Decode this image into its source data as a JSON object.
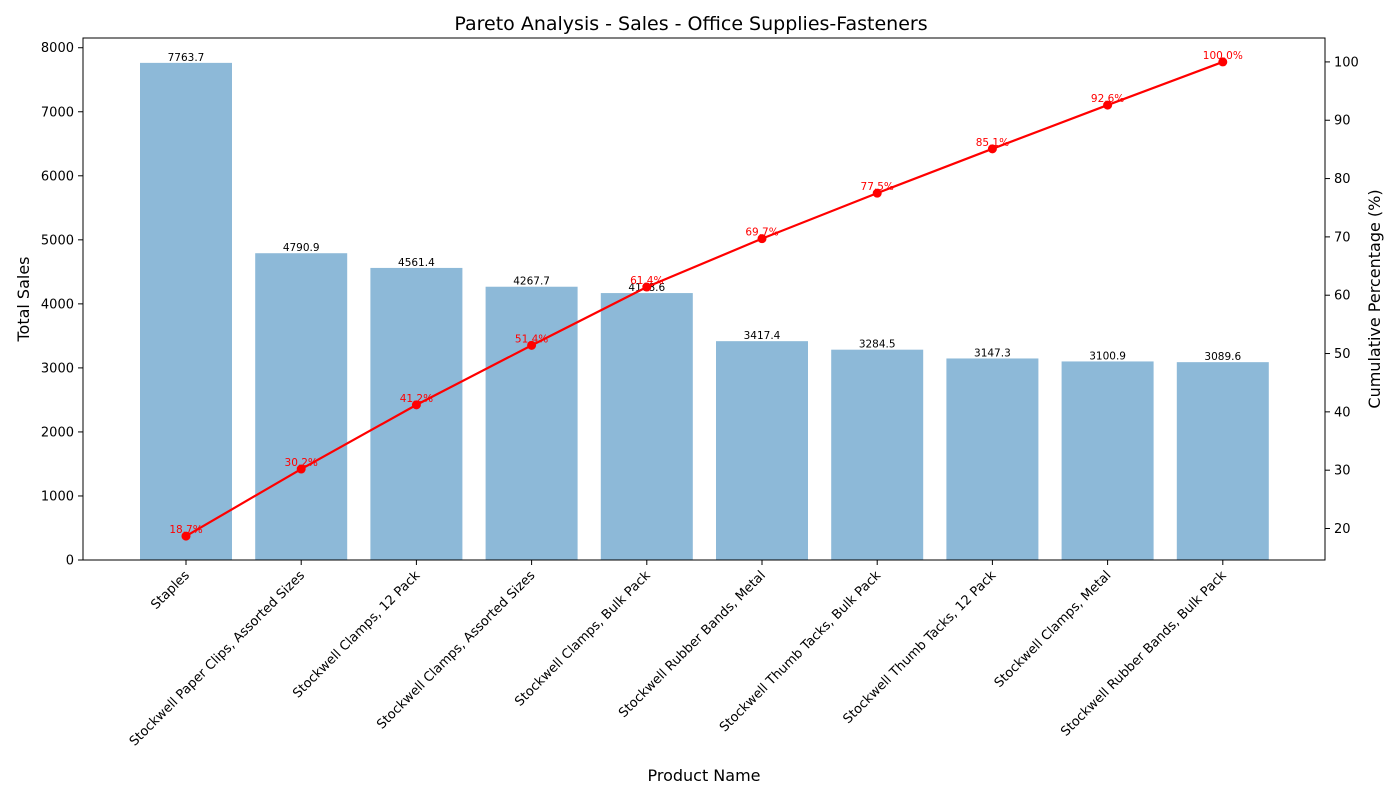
{
  "chart_data": {
    "type": "bar",
    "title": "Pareto Analysis - Sales - Office Supplies-Fasteners",
    "xlabel": "Product Name",
    "ylabel": "Total Sales",
    "y2label": "Cumulative Percentage (%)",
    "categories": [
      "Staples",
      "Stockwell Paper Clips, Assorted Sizes",
      "Stockwell Clamps, 12 Pack",
      "Stockwell Clamps, Assorted Sizes",
      "Stockwell Clamps, Bulk Pack",
      "Stockwell Rubber Bands, Metal",
      "Stockwell Thumb Tacks, Bulk Pack",
      "Stockwell Thumb Tacks, 12 Pack",
      "Stockwell Clamps, Metal",
      "Stockwell Rubber Bands, Bulk Pack"
    ],
    "values": [
      7763.7,
      4790.9,
      4561.4,
      4267.7,
      4168.6,
      3417.4,
      3284.5,
      3147.3,
      3100.9,
      3089.6
    ],
    "bar_labels": [
      "7763.7",
      "4790.9",
      "4561.4",
      "4267.7",
      "4168.6",
      "3417.4",
      "3284.5",
      "3147.3",
      "3100.9",
      "3089.6"
    ],
    "cumulative_pct": [
      18.7,
      30.2,
      41.2,
      51.4,
      61.4,
      69.7,
      77.5,
      85.1,
      92.6,
      100.0
    ],
    "pct_labels": [
      "18.7%",
      "30.2%",
      "41.2%",
      "51.4%",
      "61.4%",
      "69.7%",
      "77.5%",
      "85.1%",
      "92.6%",
      "100.0%"
    ],
    "ylim": [
      0,
      8152
    ],
    "y2lim": [
      14.6,
      104.1
    ],
    "yticks": [
      0,
      1000,
      2000,
      3000,
      4000,
      5000,
      6000,
      7000,
      8000
    ],
    "y2ticks": [
      20,
      30,
      40,
      50,
      60,
      70,
      80,
      90,
      100
    ],
    "colors": {
      "bar": "#8db9d8",
      "line": "#ff0000",
      "axis": "#000000"
    },
    "grid": false
  }
}
